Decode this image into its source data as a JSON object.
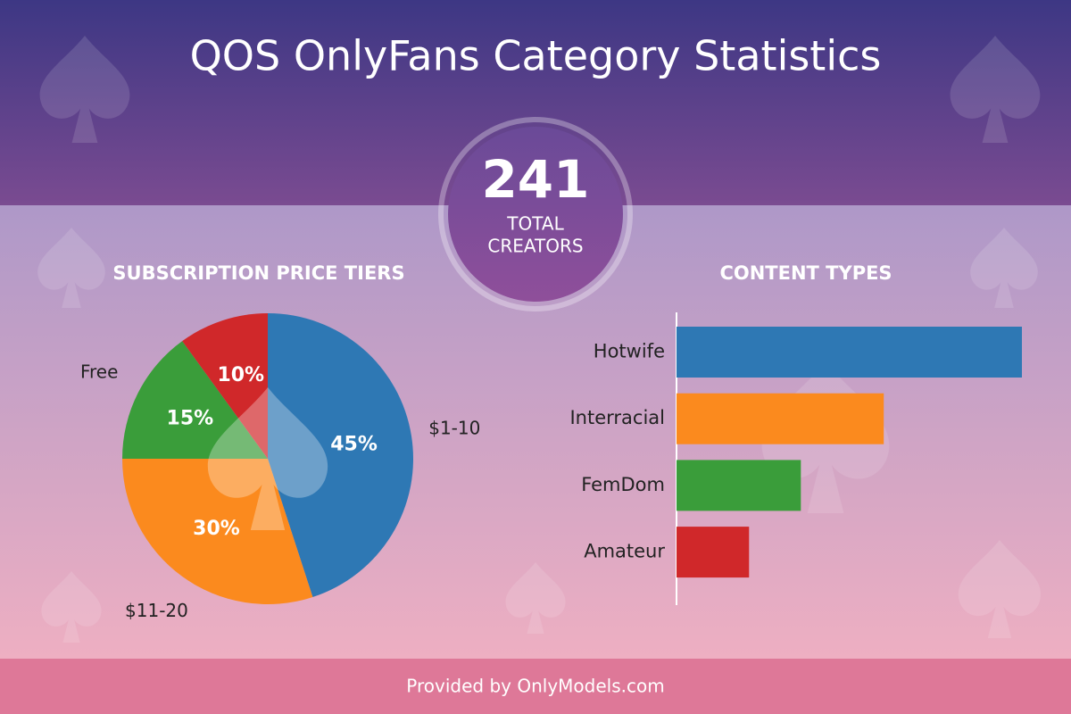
{
  "title": "QOS OnlyFans Category Statistics",
  "total": {
    "value": 241,
    "label_lines": [
      "TOTAL",
      "CREATORS"
    ]
  },
  "footer": "Provided by OnlyModels.com",
  "chart_data": [
    {
      "type": "pie",
      "title": "SUBSCRIPTION PRICE TIERS",
      "categories": [
        "$1-10",
        "$11-20",
        "Free",
        null
      ],
      "values": [
        45,
        30,
        15,
        10
      ],
      "value_labels": [
        "45%",
        "30%",
        "15%",
        "10%"
      ],
      "colors": [
        "#2e78b4",
        "#fb8a1e",
        "#3a9d3a",
        "#d0282a"
      ]
    },
    {
      "type": "hbar",
      "title": "CONTENT TYPES",
      "categories": [
        "Hotwife",
        "Interracial",
        "FemDom",
        "Amateur"
      ],
      "values": [
        100,
        60,
        36,
        21
      ],
      "colors": [
        "#2e78b4",
        "#fb8a1e",
        "#3a9d3a",
        "#d0282a"
      ]
    }
  ]
}
